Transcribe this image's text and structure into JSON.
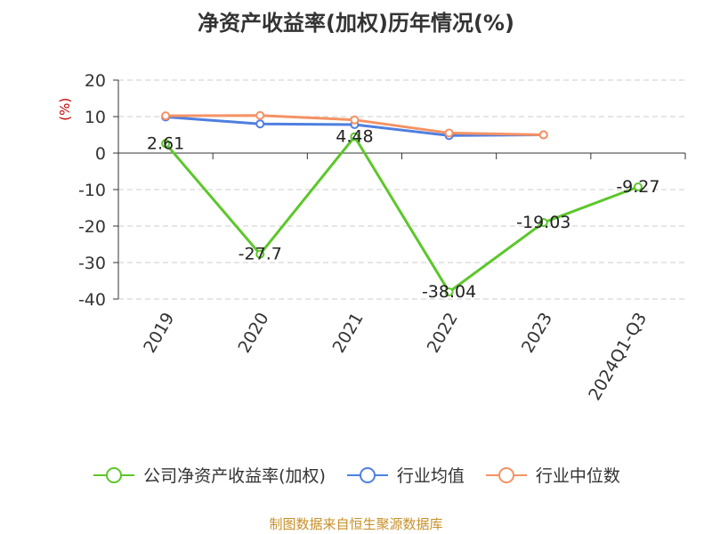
{
  "chart_data": {
    "type": "line",
    "title": "净资产收益率(加权)历年情况(%)",
    "ylabel": "(%)",
    "categories": [
      "2019",
      "2020",
      "2021",
      "2022",
      "2023",
      "2024Q1-Q3"
    ],
    "ylim": [
      -40,
      20
    ],
    "yticks": [
      20,
      10,
      0,
      -10,
      -20,
      -30,
      -40
    ],
    "grid": true,
    "legend_position": "bottom",
    "series": [
      {
        "name": "公司净资产收益率(加权)",
        "color": "#5cc72a",
        "values": [
          2.61,
          -27.7,
          4.48,
          -38.04,
          -19.03,
          -9.27
        ],
        "labels": [
          "2.61",
          "-27.7",
          "4.48",
          "-38.04",
          "-19.03",
          "-9.27"
        ]
      },
      {
        "name": "行业均值",
        "color": "#4f7fe0",
        "values": [
          9.9,
          8.0,
          7.8,
          4.8,
          5.0,
          null
        ]
      },
      {
        "name": "行业中位数",
        "color": "#f59264",
        "values": [
          10.2,
          10.3,
          9.1,
          5.5,
          5.0,
          null
        ]
      }
    ]
  },
  "source": "制图数据来自恒生聚源数据库"
}
